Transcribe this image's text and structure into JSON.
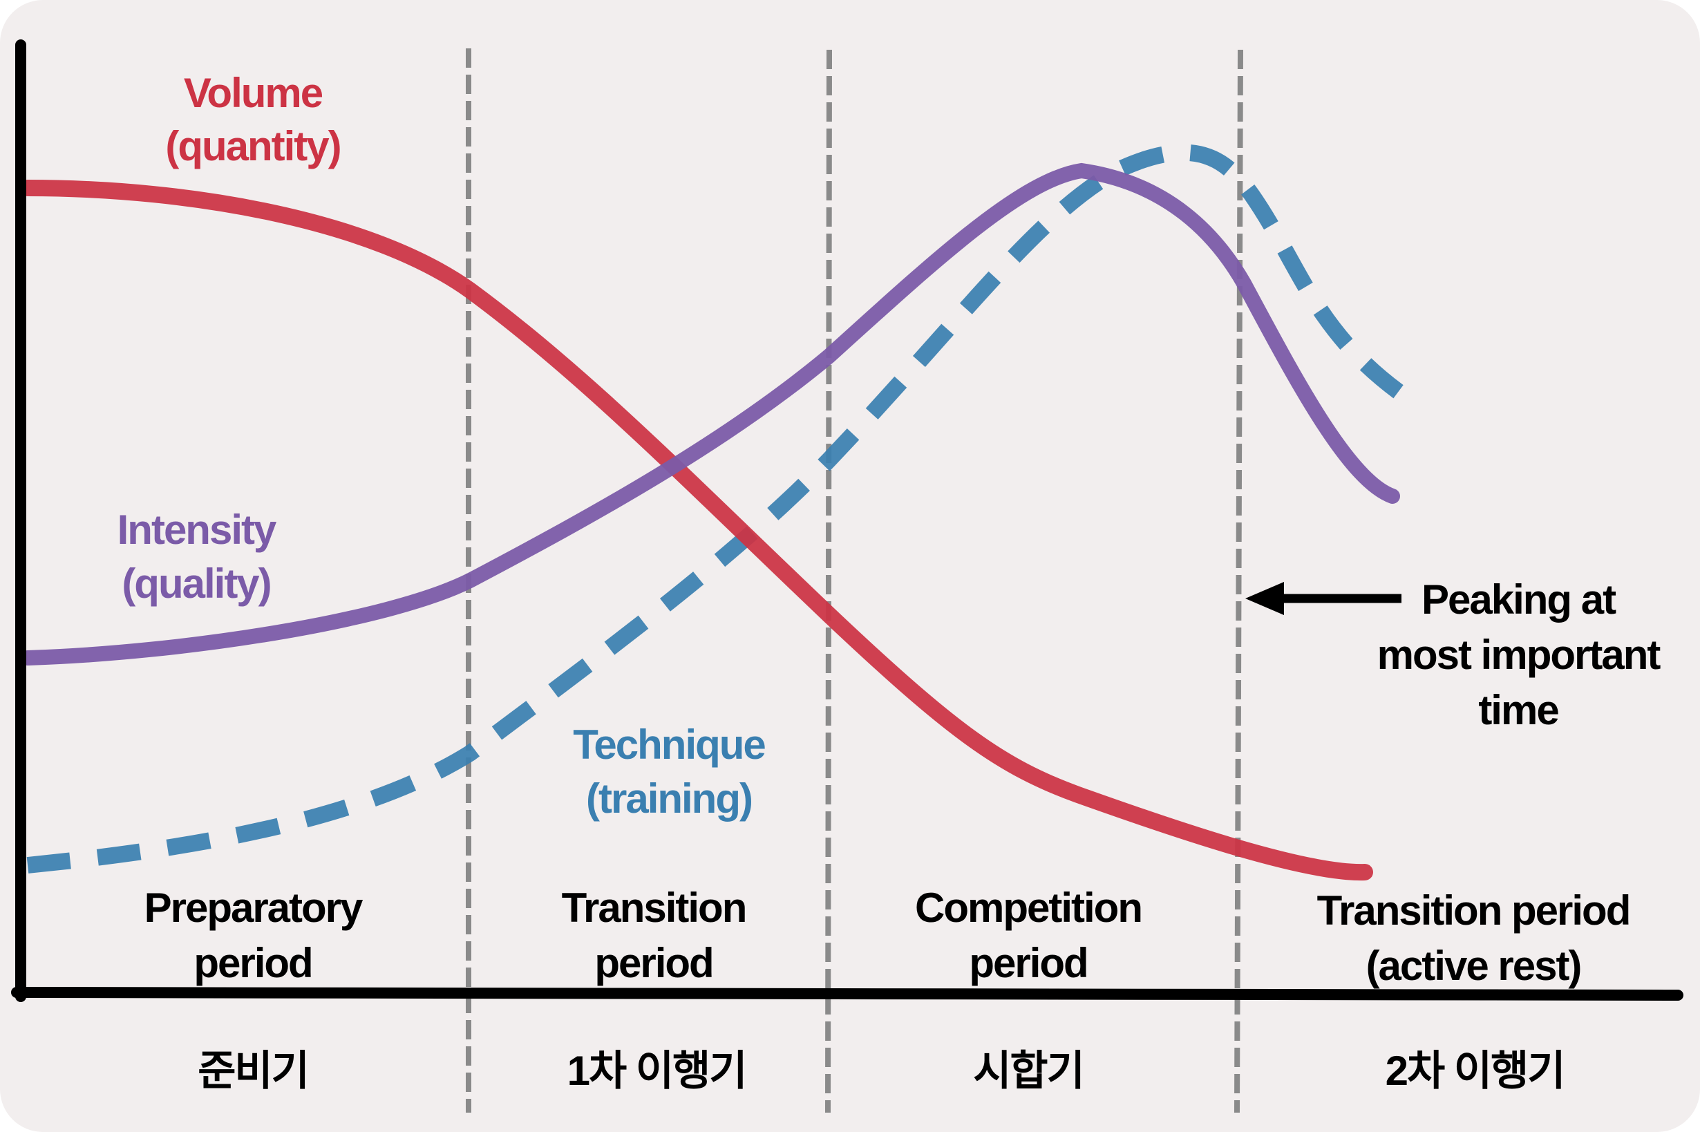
{
  "chart_data": {
    "type": "line",
    "title": "",
    "xlabel": "",
    "ylabel": "",
    "grid": false,
    "series": [
      {
        "name": "Volume (quantity)",
        "label_line1": "Volume",
        "label_line2": "(quantity)",
        "color": "#cc3344",
        "style": "solid"
      },
      {
        "name": "Intensity (quality)",
        "label_line1": "Intensity",
        "label_line2": "(quality)",
        "color": "#7b5ba8",
        "style": "solid"
      },
      {
        "name": "Technique (training)",
        "label_line1": "Technique",
        "label_line2": "(training)",
        "color": "#3a7fb0",
        "style": "dashed"
      }
    ],
    "periods": [
      {
        "en_line1": "Preparatory",
        "en_line2": "period",
        "ko": "준비기"
      },
      {
        "en_line1": "Transition",
        "en_line2": "period",
        "ko": "1차 이행기"
      },
      {
        "en_line1": "Competition",
        "en_line2": "period",
        "ko": "시합기"
      },
      {
        "en_line1": "Transition period",
        "en_line2": "(active rest)",
        "ko": "2차 이행기"
      }
    ],
    "annotation": {
      "line1": "Peaking at",
      "line2": "most important",
      "line3": "time"
    }
  },
  "colors": {
    "background": "#f2eeee",
    "axis": "#000000",
    "divider": "#8a8a8a"
  }
}
